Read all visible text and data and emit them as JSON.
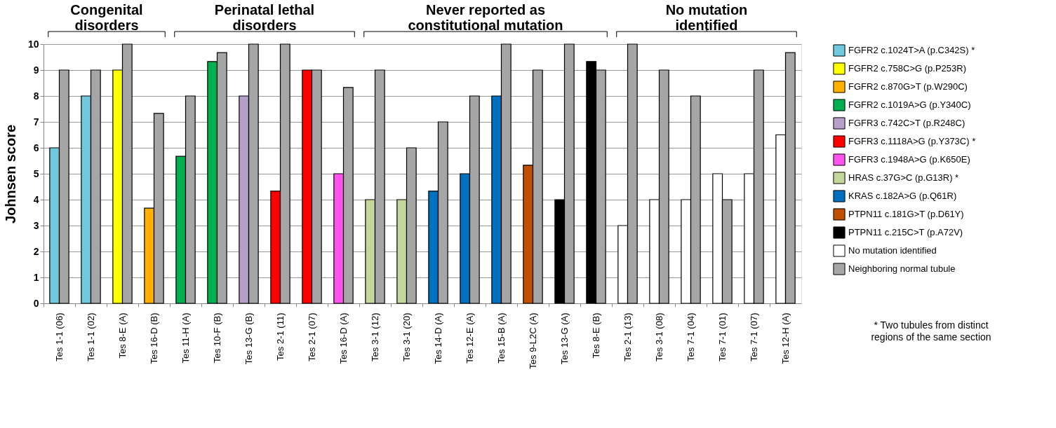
{
  "chart_data": {
    "type": "bar",
    "ylabel": "Johnsen score",
    "categories": [
      "Tes 1-1 (06)",
      "Tes 1-1 (02)",
      "Tes 8-E (A)",
      "Tes 16-D (B)",
      "Tes 11-H (A)",
      "Tes 10-F (B)",
      "Tes 13-G (B)",
      "Tes 2-1 (11)",
      "Tes 2-1 (07)",
      "Tes 16-D (A)",
      "Tes 3-1 (12)",
      "Tes 3-1 (20)",
      "Tes 14-D (A)",
      "Tes 12-E (A)",
      "Tes 15-B (A)",
      "Tes 9-L2C (A)",
      "Tes 13-G (A)",
      "Tes 8-E (B)",
      "Tes 2-1 (13)",
      "Tes 3-1 (08)",
      "Tes 7-1 (04)",
      "Tes 7-1 (01)",
      "Tes 7-1 (07)",
      "Tes 12-H (A)"
    ],
    "series": [
      {
        "name": "FGFR2 c.1024T>A (p.C342S) *",
        "color": "#70c8dc",
        "values": [
          6,
          8,
          null,
          null,
          null,
          null,
          null,
          null,
          null,
          null,
          null,
          null,
          null,
          null,
          null,
          null,
          null,
          null,
          null,
          null,
          null,
          null,
          null,
          null
        ]
      },
      {
        "name": "FGFR2 c.758C>G (p.P253R)",
        "color": "#ffff00",
        "values": [
          null,
          null,
          9,
          null,
          null,
          null,
          null,
          null,
          null,
          null,
          null,
          null,
          null,
          null,
          null,
          null,
          null,
          null,
          null,
          null,
          null,
          null,
          null,
          null
        ]
      },
      {
        "name": "FGFR2 c.870G>T (p.W290C)",
        "color": "#ffb000",
        "values": [
          null,
          null,
          null,
          3.67,
          null,
          null,
          null,
          null,
          null,
          null,
          null,
          null,
          null,
          null,
          null,
          null,
          null,
          null,
          null,
          null,
          null,
          null,
          null,
          null
        ]
      },
      {
        "name": "FGFR2 c.1019A>G (p.Y340C)",
        "color": "#00b050",
        "values": [
          null,
          null,
          null,
          null,
          5.67,
          9.33,
          null,
          null,
          null,
          null,
          null,
          null,
          null,
          null,
          null,
          null,
          null,
          null,
          null,
          null,
          null,
          null,
          null,
          null
        ]
      },
      {
        "name": "FGFR3 c.742C>T (p.R248C)",
        "color": "#b4a0c8",
        "values": [
          null,
          null,
          null,
          null,
          null,
          null,
          8,
          null,
          null,
          null,
          null,
          null,
          null,
          null,
          null,
          null,
          null,
          null,
          null,
          null,
          null,
          null,
          null,
          null
        ]
      },
      {
        "name": "FGFR3 c.1118A>G (p.Y373C) *",
        "color": "#ff0000",
        "values": [
          null,
          null,
          null,
          null,
          null,
          null,
          null,
          4.33,
          9,
          null,
          null,
          null,
          null,
          null,
          null,
          null,
          null,
          null,
          null,
          null,
          null,
          null,
          null,
          null
        ]
      },
      {
        "name": "FGFR3 c.1948A>G (p.K650E)",
        "color": "#ff55ee",
        "values": [
          null,
          null,
          null,
          null,
          null,
          null,
          null,
          null,
          null,
          5,
          null,
          null,
          null,
          null,
          null,
          null,
          null,
          null,
          null,
          null,
          null,
          null,
          null,
          null
        ]
      },
      {
        "name": "HRAS c.37G>C (p.G13R) *",
        "color": "#c4d79b",
        "values": [
          null,
          null,
          null,
          null,
          null,
          null,
          null,
          null,
          null,
          null,
          4,
          4,
          null,
          null,
          null,
          null,
          null,
          null,
          null,
          null,
          null,
          null,
          null,
          null
        ]
      },
      {
        "name": "KRAS c.182A>G (p.Q61R)",
        "color": "#0070c0",
        "values": [
          null,
          null,
          null,
          null,
          null,
          null,
          null,
          null,
          null,
          null,
          null,
          null,
          4.33,
          5,
          8,
          null,
          null,
          null,
          null,
          null,
          null,
          null,
          null,
          null
        ]
      },
      {
        "name": "PTPN11 c.181G>T (p.D61Y)",
        "color": "#c05000",
        "values": [
          null,
          null,
          null,
          null,
          null,
          null,
          null,
          null,
          null,
          null,
          null,
          null,
          null,
          null,
          null,
          5.33,
          null,
          null,
          null,
          null,
          null,
          null,
          null,
          null
        ]
      },
      {
        "name": "PTPN11 c.215C>T (p.A72V)",
        "color": "#000000",
        "values": [
          null,
          null,
          null,
          null,
          null,
          null,
          null,
          null,
          null,
          null,
          null,
          null,
          null,
          null,
          null,
          null,
          4,
          9.33,
          null,
          null,
          null,
          null,
          null,
          null
        ]
      },
      {
        "name": "No mutation identified",
        "color": "#ffffff",
        "values": [
          null,
          null,
          null,
          null,
          null,
          null,
          null,
          null,
          null,
          null,
          null,
          null,
          null,
          null,
          null,
          null,
          null,
          null,
          3,
          4,
          4,
          5,
          5,
          6.5
        ]
      },
      {
        "name": "Neighboring normal tubule",
        "color": "#a6a6a6",
        "values": [
          9,
          9,
          10,
          7.33,
          8,
          9.67,
          10,
          10,
          9,
          8.33,
          9,
          6,
          7,
          8,
          10,
          9,
          10,
          9,
          10,
          9,
          8,
          4,
          9,
          9.67
        ]
      }
    ],
    "ylim": [
      0,
      10
    ],
    "yticks": [
      0,
      1,
      2,
      3,
      4,
      5,
      6,
      7,
      8,
      9,
      10
    ],
    "grid": "y",
    "legend": "right",
    "annotations": [
      "Congenital\ndisorders",
      "Perinatal lethal\ndisorders",
      "Never reported as\nconstitutional  mutation",
      "No mutation\nidentified",
      "* Two tubules from distinct\nregions of the same section"
    ]
  }
}
